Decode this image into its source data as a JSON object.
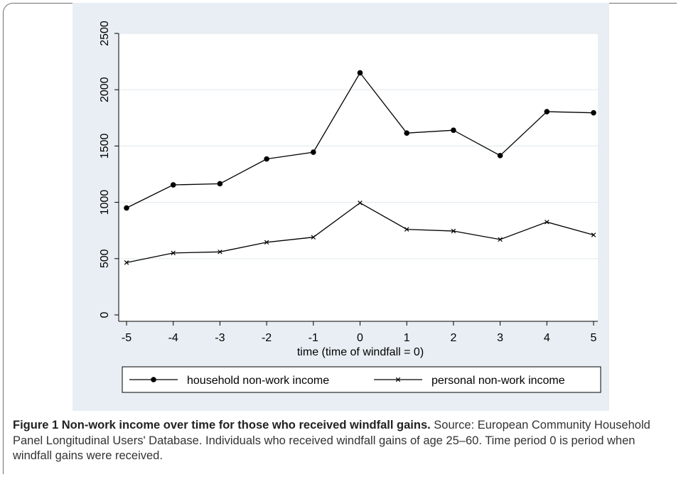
{
  "chart_data": {
    "type": "line",
    "xlabel": "time (time of windfall = 0)",
    "ylabel": "",
    "x": [
      -5,
      -4,
      -3,
      -2,
      -1,
      0,
      1,
      2,
      3,
      4,
      5
    ],
    "xlim": [
      -5,
      5
    ],
    "ylim": [
      0,
      2500
    ],
    "yticks": [
      0,
      500,
      1000,
      1500,
      2000,
      2500
    ],
    "xticks": [
      -5,
      -4,
      -3,
      -2,
      -1,
      0,
      1,
      2,
      3,
      4,
      5
    ],
    "grid": "horizontal",
    "legend_position": "bottom",
    "series": [
      {
        "name": "household non-work income",
        "marker": "circle",
        "values": [
          950,
          1155,
          1165,
          1385,
          1445,
          2150,
          1615,
          1640,
          1415,
          1805,
          1795
        ]
      },
      {
        "name": "personal non-work income",
        "marker": "x",
        "values": [
          465,
          550,
          560,
          645,
          690,
          995,
          760,
          745,
          670,
          825,
          710
        ]
      }
    ],
    "colors": {
      "panel": "#e8eef3",
      "plot": "#ffffff",
      "line": "#000000"
    }
  },
  "caption": {
    "title": "Figure 1 Non-work income over time for those who received windfall gains.",
    "body": " Source: European Community Household Panel Longitudinal Users' Database. Individuals who received windfall gains of age 25–60. Time period 0 is period when windfall gains were received."
  }
}
